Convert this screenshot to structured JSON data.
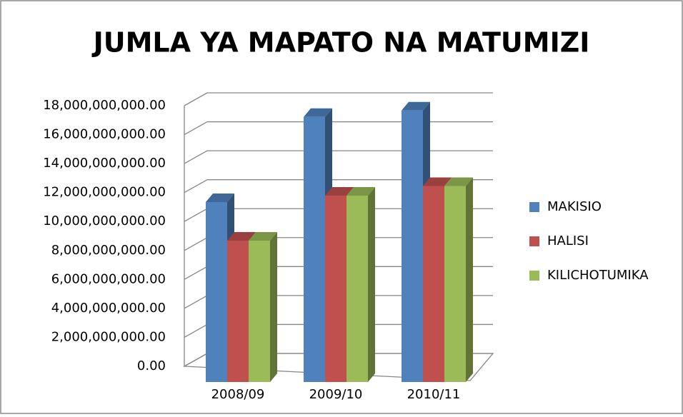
{
  "chart_data": {
    "type": "bar3d",
    "title": "JUMLA YA MAPATO NA MATUMIZI",
    "categories": [
      "2008/09",
      "2009/10",
      "2010/11"
    ],
    "series": [
      {
        "name": "MAKISIO",
        "color": "#4f81bd",
        "values": [
          11200000000,
          16500000000,
          16900000000
        ]
      },
      {
        "name": "HALISI",
        "color": "#c0504d",
        "values": [
          8800000000,
          11600000000,
          12200000000
        ]
      },
      {
        "name": "KILICHOTUMIKA",
        "color": "#9bbb59",
        "values": [
          8800000000,
          11600000000,
          12200000000
        ]
      }
    ],
    "ylim": [
      0,
      18000000000
    ],
    "yticks": [
      {
        "value": 0,
        "label": "0.00"
      },
      {
        "value": 2000000000,
        "label": "2,000,000,000.00"
      },
      {
        "value": 4000000000,
        "label": "4,000,000,000.00"
      },
      {
        "value": 6000000000,
        "label": "6,000,000,000.00"
      },
      {
        "value": 8000000000,
        "label": "8,000,000,000.00"
      },
      {
        "value": 10000000000,
        "label": "10,000,000,000.00"
      },
      {
        "value": 12000000000,
        "label": "12,000,000,000.00"
      },
      {
        "value": 14000000000,
        "label": "14,000,000,000.00"
      },
      {
        "value": 16000000000,
        "label": "16,000,000,000.00"
      },
      {
        "value": 18000000000,
        "label": "18,000,000,000.00"
      }
    ],
    "grid": true,
    "legend": "right"
  }
}
